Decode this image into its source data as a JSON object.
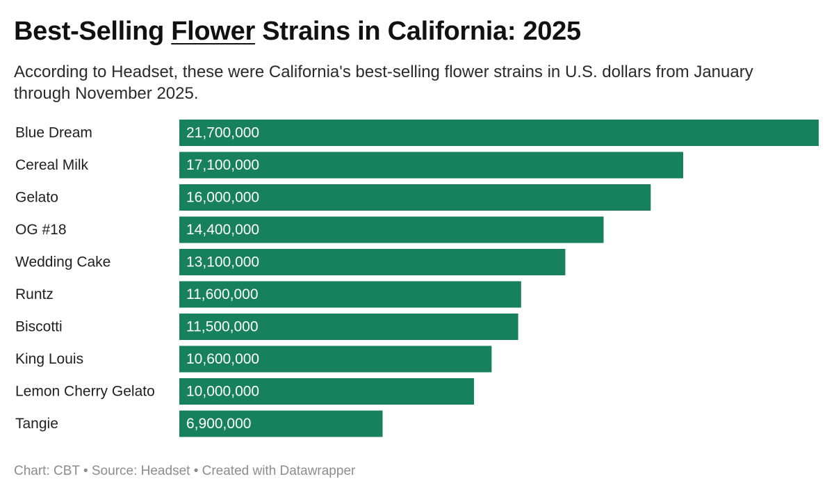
{
  "header": {
    "title_before": "Best-Selling ",
    "title_link": "Flower",
    "title_after": " Strains in California: 2025",
    "subtitle": "According to Headset, these were California's best-selling flower strains in U.S. dollars from January through November 2025."
  },
  "chart_data": {
    "type": "bar",
    "orientation": "horizontal",
    "categories": [
      "Blue Dream",
      "Cereal Milk",
      "Gelato",
      "OG #18",
      "Wedding Cake",
      "Runtz",
      "Biscotti",
      "King Louis",
      "Lemon Cherry Gelato",
      "Tangie"
    ],
    "values": [
      21700000,
      17100000,
      16000000,
      14400000,
      13100000,
      11600000,
      11500000,
      10600000,
      10000000,
      6900000
    ],
    "value_labels": [
      "21,700,000",
      "17,100,000",
      "16,000,000",
      "14,400,000",
      "13,100,000",
      "11,600,000",
      "11,500,000",
      "10,600,000",
      "10,000,000",
      "6,900,000"
    ],
    "xlim": [
      0,
      21700000
    ],
    "grid": false,
    "bar_color": "#17815e",
    "label_color": "#ffffff"
  },
  "footer": {
    "credit": "Chart: CBT • Source: Headset • Created with Datawrapper"
  }
}
